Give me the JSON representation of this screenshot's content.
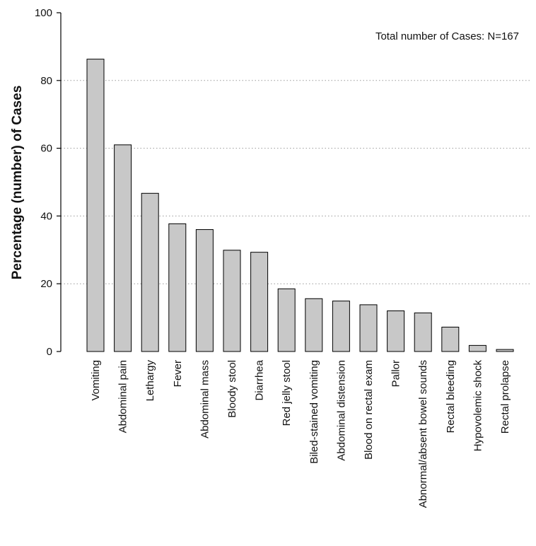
{
  "chart_data": {
    "type": "bar",
    "title": "",
    "xlabel": "",
    "ylabel": "Percentage (number) of Cases",
    "ylim": [
      0,
      100
    ],
    "yticks": [
      0,
      20,
      40,
      60,
      80,
      100
    ],
    "grid": "horizontal dotted",
    "annotation": "Total number of Cases: N=167",
    "bar_color": "#c8c8c8",
    "categories": [
      "Vomiting",
      "Abdominal pain",
      "Lethargy",
      "Fever",
      "Abdominal mass",
      "Bloody stool",
      "Diarrhea",
      "Red jelly stool",
      "Biled-stained vomiting",
      "Abdominal distension",
      "Blood on rectal exam",
      "Pallor",
      "Abnormal/absent bowel sounds",
      "Rectal bleeding",
      "Hypovolemic shock",
      "Rectal prolapse"
    ],
    "values": [
      86.3,
      61.0,
      46.7,
      37.7,
      36.0,
      29.9,
      29.3,
      18.5,
      15.6,
      14.9,
      13.8,
      12.0,
      11.4,
      7.2,
      1.8,
      0.6
    ]
  }
}
